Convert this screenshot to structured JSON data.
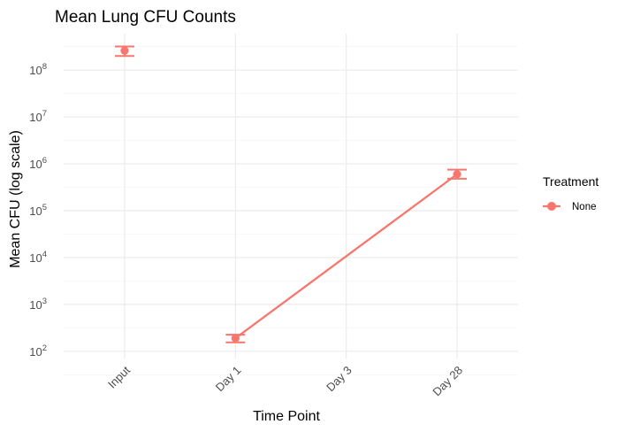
{
  "chart_data": {
    "type": "line",
    "title": "Mean Lung CFU Counts",
    "xlabel": "Time Point",
    "ylabel": "Mean CFU (log scale)",
    "categories": [
      "Input",
      "Day 1",
      "Day 3",
      "Day 28"
    ],
    "y_scale": "log10",
    "ylim": [
      70,
      600000000
    ],
    "y_ticks": [
      {
        "value": 100,
        "base": "10",
        "exp": "2"
      },
      {
        "value": 1000,
        "base": "10",
        "exp": "3"
      },
      {
        "value": 10000,
        "base": "10",
        "exp": "4"
      },
      {
        "value": 100000,
        "base": "10",
        "exp": "5"
      },
      {
        "value": 1000000,
        "base": "10",
        "exp": "6"
      },
      {
        "value": 10000000,
        "base": "10",
        "exp": "7"
      },
      {
        "value": 100000000,
        "base": "10",
        "exp": "8"
      }
    ],
    "legend": {
      "title": "Treatment",
      "position": "right"
    },
    "series": [
      {
        "name": "None",
        "color": "#f8766d",
        "points": [
          {
            "category": "Input",
            "y": 260000000,
            "ymin": 200000000,
            "ymax": 320000000,
            "connected": false
          },
          {
            "category": "Day 1",
            "y": 190,
            "ymin": 155,
            "ymax": 225,
            "connected": true
          },
          {
            "category": "Day 28",
            "y": 600000,
            "ymin": 480000,
            "ymax": 750000,
            "connected": true
          }
        ]
      }
    ],
    "grid": true
  }
}
